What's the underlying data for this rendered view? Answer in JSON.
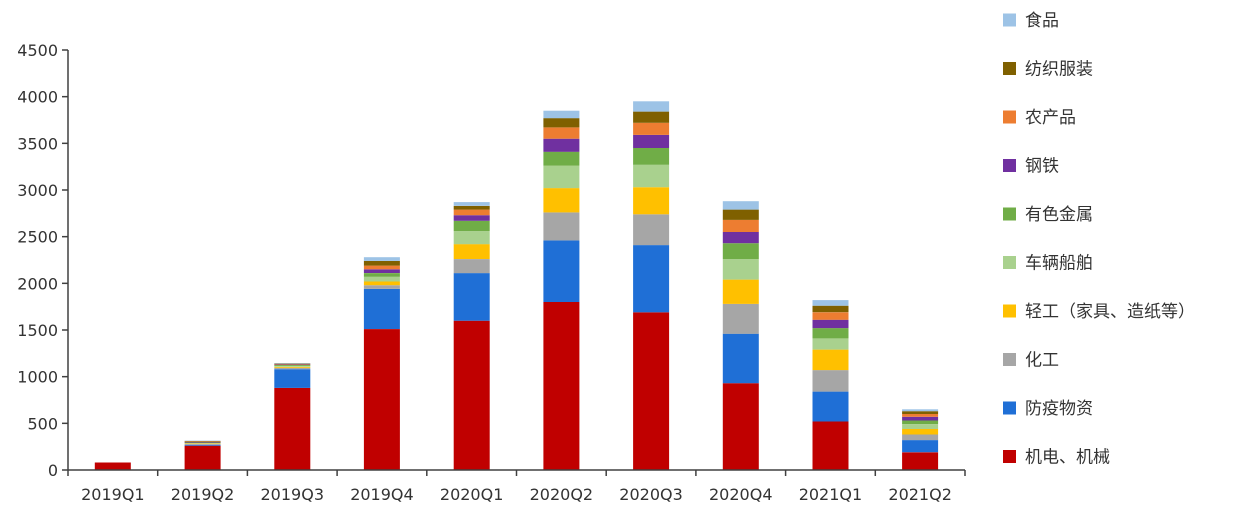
{
  "chart_data": {
    "type": "bar",
    "stacked": true,
    "categories": [
      "2019Q1",
      "2019Q2",
      "2019Q3",
      "2019Q4",
      "2020Q1",
      "2020Q2",
      "2020Q3",
      "2020Q4",
      "2021Q1",
      "2021Q2"
    ],
    "ylim": [
      0,
      4500
    ],
    "yticks": [
      0,
      500,
      1000,
      1500,
      2000,
      2500,
      3000,
      3500,
      4000,
      4500
    ],
    "grid": false,
    "legend_position": "right",
    "series": [
      {
        "name": "机电、机械",
        "color": "#C00000",
        "values": [
          80,
          260,
          880,
          1510,
          1600,
          1800,
          1690,
          930,
          520,
          190
        ]
      },
      {
        "name": "防疫物资",
        "color": "#1F6FD6",
        "values": [
          0,
          10,
          200,
          430,
          510,
          660,
          720,
          530,
          320,
          130
        ]
      },
      {
        "name": "化工",
        "color": "#A6A6A6",
        "values": [
          0,
          10,
          15,
          40,
          150,
          300,
          330,
          320,
          230,
          60
        ]
      },
      {
        "name": "轻工（家具、造纸等）",
        "color": "#FFC000",
        "values": [
          0,
          5,
          10,
          40,
          160,
          260,
          290,
          260,
          220,
          60
        ]
      },
      {
        "name": "车辆船舶",
        "color": "#A9D18E",
        "values": [
          0,
          5,
          10,
          50,
          140,
          240,
          240,
          220,
          120,
          50
        ]
      },
      {
        "name": "有色金属",
        "color": "#70AD47",
        "values": [
          0,
          5,
          10,
          40,
          110,
          150,
          180,
          170,
          110,
          40
        ]
      },
      {
        "name": "钢铁",
        "color": "#7030A0",
        "values": [
          0,
          5,
          5,
          40,
          60,
          140,
          140,
          120,
          90,
          40
        ]
      },
      {
        "name": "农产品",
        "color": "#ED7D31",
        "values": [
          0,
          5,
          5,
          40,
          60,
          120,
          130,
          130,
          80,
          30
        ]
      },
      {
        "name": "纺织服装",
        "color": "#7F6000",
        "values": [
          0,
          5,
          5,
          50,
          40,
          100,
          120,
          110,
          70,
          30
        ]
      },
      {
        "name": "食品",
        "color": "#9DC3E6",
        "values": [
          0,
          5,
          5,
          40,
          40,
          80,
          110,
          90,
          60,
          20
        ]
      }
    ]
  }
}
